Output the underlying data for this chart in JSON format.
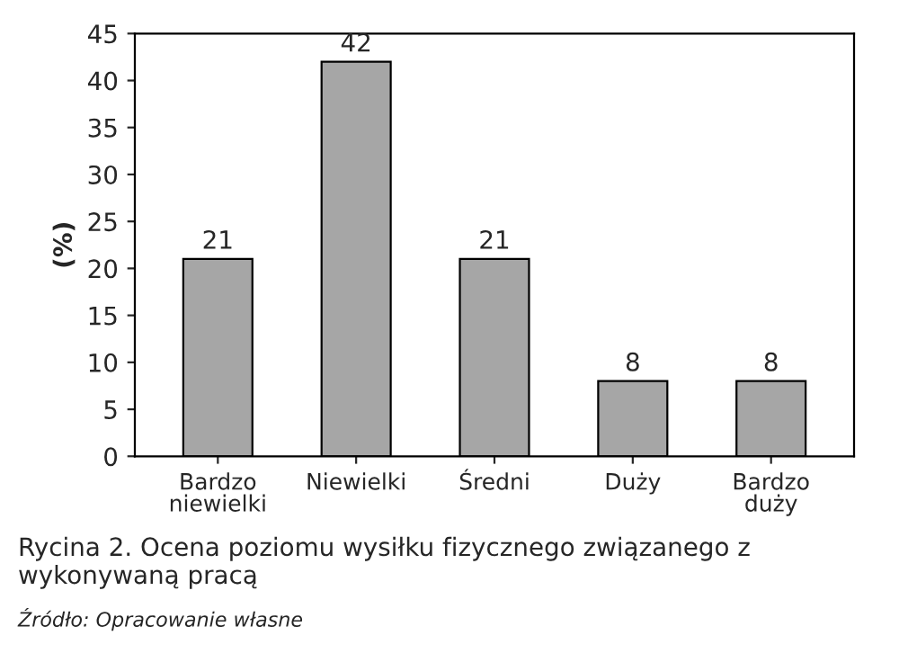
{
  "chart_data": {
    "type": "bar",
    "title": "Rycina 2. Ocena poziomu wysiłku fizycznego związanego z wykonywaną pracą",
    "ylabel": "(%)",
    "categories": [
      "Bardzo\nniewielki",
      "Niewielki",
      "Średni",
      "Duży",
      "Bardzo\nduży"
    ],
    "values": [
      21,
      42,
      21,
      8,
      8
    ],
    "color": "#a6a6a6",
    "ylim": [
      0,
      45
    ],
    "yticks": [
      0,
      5,
      10,
      15,
      20,
      25,
      30,
      35,
      40,
      45
    ],
    "data_labels": true,
    "grid": false,
    "legend": false,
    "annotations": [
      "Źródło: Opracowanie własne"
    ]
  }
}
